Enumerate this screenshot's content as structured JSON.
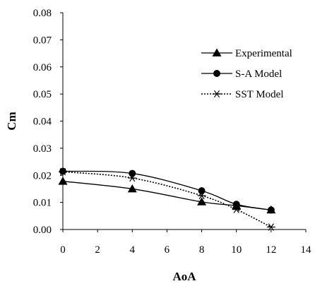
{
  "chart_data": {
    "type": "line",
    "xlabel": "AoA",
    "ylabel": "Cm",
    "xlim": [
      0,
      14
    ],
    "ylim": [
      0,
      0.08
    ],
    "x_ticks": [
      0,
      2,
      4,
      6,
      8,
      10,
      12,
      14
    ],
    "x_tick_labels": [
      "0",
      "2",
      "4",
      "6",
      "8",
      "10",
      "12",
      "14"
    ],
    "y_ticks": [
      0,
      0.01,
      0.02,
      0.03,
      0.04,
      0.05,
      0.06,
      0.07,
      0.08
    ],
    "y_tick_labels": [
      "0.00",
      "0.01",
      "0.02",
      "0.03",
      "0.04",
      "0.05",
      "0.06",
      "0.07",
      "0.08"
    ],
    "grid": false,
    "legend_position": "top-right",
    "series": [
      {
        "name": "Experimental",
        "marker": "triangle",
        "line_style": "solid",
        "color": "#000000",
        "x": [
          0,
          4,
          8,
          10,
          12
        ],
        "y": [
          0.0178,
          0.015,
          0.0102,
          0.0088,
          0.0072
        ]
      },
      {
        "name": "S-A Model",
        "marker": "circle",
        "line_style": "solid",
        "color": "#000000",
        "x": [
          0,
          4,
          8,
          10,
          12
        ],
        "y": [
          0.0215,
          0.0207,
          0.0143,
          0.0093,
          0.0072
        ]
      },
      {
        "name": "SST Model",
        "marker": "asterisk",
        "line_style": "dotted",
        "color": "#000000",
        "x": [
          0,
          4,
          8,
          10,
          12
        ],
        "y": [
          0.0213,
          0.019,
          0.0125,
          0.0074,
          0.0009
        ]
      }
    ]
  }
}
